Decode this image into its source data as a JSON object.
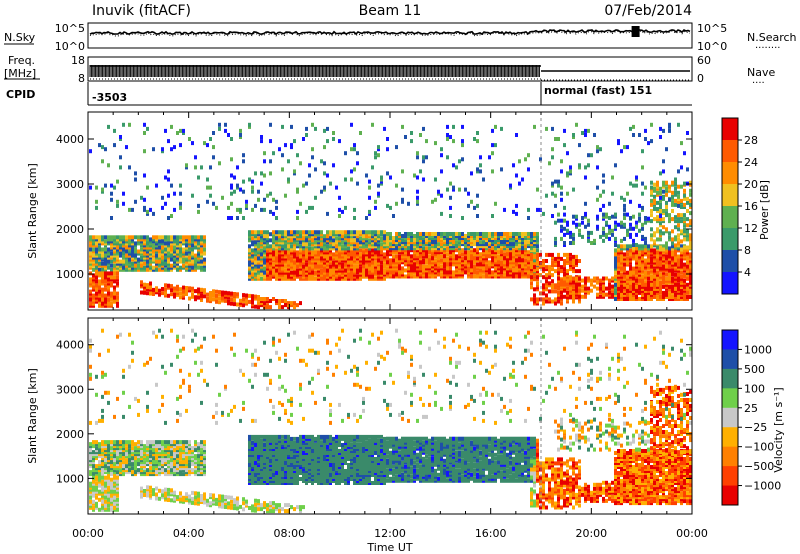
{
  "header": {
    "title_left": "Inuvik (fitACF)",
    "title_center": "Beam 11",
    "title_right": "07/Feb/2014"
  },
  "noise_panel": {
    "left_label": "N.Sky",
    "left_ticks": [
      "10^5",
      "10^0"
    ],
    "right_ticks": [
      "10^5",
      "10^0"
    ],
    "right_label": "N.Search",
    "right_dots": "........"
  },
  "freq_panel": {
    "left_label_1": "Freq.",
    "left_label_2": "[MHz]",
    "left_ticks": [
      "18",
      "8"
    ],
    "right_ticks": [
      "60",
      "0"
    ],
    "right_label": "Nave",
    "right_dots": "...."
  },
  "cpid_panel": {
    "label": "CPID",
    "segment_1": "-3503",
    "segment_2": "normal (fast) 151",
    "switch_time_hours": 18.0
  },
  "colors": {
    "power": [
      "#1414ff",
      "#1e4fa8",
      "#3a9a6a",
      "#5fb050",
      "#f0c020",
      "#ff8c00",
      "#ff5a00",
      "#e80000"
    ],
    "velocity": [
      "#1414ff",
      "#1e4fa8",
      "#3a8a6a",
      "#6fd04a",
      "#c8c8c8",
      "#ffb000",
      "#ff8000",
      "#ff4000",
      "#e80000"
    ]
  },
  "chart_data": [
    {
      "type": "heatmap",
      "name": "power-panel",
      "ylabel": "Slant Range [km]",
      "yticks": [
        1000,
        2000,
        3000,
        4000
      ],
      "ylim": [
        200,
        4600
      ],
      "xlim_hours": [
        0,
        24
      ],
      "colorbar_label": "Power [dB]",
      "colorbar_ticks": [
        "4",
        "8",
        "12",
        "16",
        "20",
        "24",
        "28"
      ]
    },
    {
      "type": "heatmap",
      "name": "velocity-panel",
      "ylabel": "Slant Range [km]",
      "yticks": [
        1000,
        2000,
        3000,
        4000
      ],
      "ylim": [
        200,
        4600
      ],
      "xlim_hours": [
        0,
        24
      ],
      "xticks": [
        "00:00",
        "04:00",
        "08:00",
        "12:00",
        "16:00",
        "20:00",
        "00:00"
      ],
      "xlabel": "Time UT",
      "colorbar_label": "Velocity [m s⁻¹]",
      "colorbar_ticks": [
        "1000",
        "500",
        "100",
        "25",
        "−25",
        "−100",
        "−500",
        "−1000"
      ]
    }
  ]
}
